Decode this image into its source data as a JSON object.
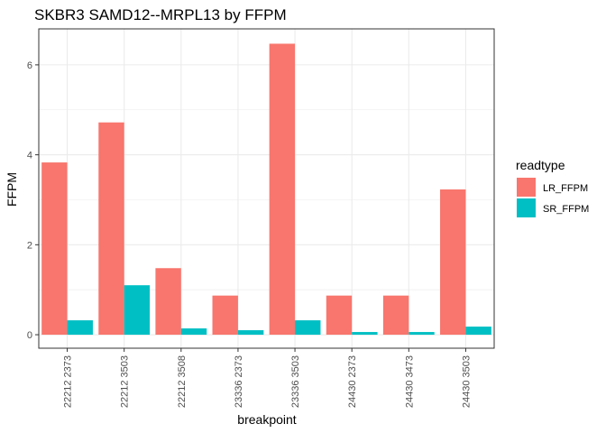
{
  "chart_data": {
    "type": "bar",
    "title": "SKBR3 SAMD12--MRPL13 by FFPM",
    "xlabel": "breakpoint",
    "ylabel": "FFPM",
    "ylim": [
      -0.3,
      6.8
    ],
    "yticks": [
      0,
      2,
      4,
      6
    ],
    "grid": true,
    "legend": {
      "title": "readtype",
      "position": "right"
    },
    "categories": [
      "22212 2373",
      "22212 3503",
      "22212 3508",
      "23336 2373",
      "23336 3503",
      "24430 2373",
      "24430 3473",
      "24430 3503"
    ],
    "series": [
      {
        "name": "LR_FFPM",
        "color": "#F8766D",
        "values": [
          3.83,
          4.72,
          1.48,
          0.87,
          6.47,
          0.87,
          0.87,
          3.23
        ]
      },
      {
        "name": "SR_FFPM",
        "color": "#00BFC4",
        "values": [
          0.32,
          1.1,
          0.14,
          0.1,
          0.32,
          0.06,
          0.06,
          0.18
        ]
      }
    ]
  }
}
